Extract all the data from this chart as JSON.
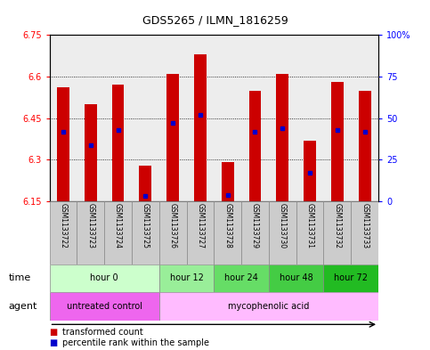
{
  "title": "GDS5265 / ILMN_1816259",
  "samples": [
    "GSM1133722",
    "GSM1133723",
    "GSM1133724",
    "GSM1133725",
    "GSM1133726",
    "GSM1133727",
    "GSM1133728",
    "GSM1133729",
    "GSM1133730",
    "GSM1133731",
    "GSM1133732",
    "GSM1133733"
  ],
  "bar_bottom": 6.15,
  "transformed_count": [
    6.56,
    6.5,
    6.57,
    6.28,
    6.61,
    6.68,
    6.29,
    6.55,
    6.61,
    6.37,
    6.58,
    6.55
  ],
  "percentile_rank_pct": [
    42,
    34,
    43,
    3,
    47,
    52,
    4,
    42,
    44,
    17,
    43,
    42
  ],
  "ylim_left": [
    6.15,
    6.75
  ],
  "ylim_right": [
    0,
    100
  ],
  "yticks_left": [
    6.15,
    6.3,
    6.45,
    6.6,
    6.75
  ],
  "yticks_right": [
    0,
    25,
    50,
    75,
    100
  ],
  "ytick_labels_right": [
    "0",
    "25",
    "50",
    "75",
    "100%"
  ],
  "bar_color": "#cc0000",
  "percentile_color": "#0000cc",
  "background_color": "#ffffff",
  "grid_color": "#000000",
  "time_groups": [
    {
      "label": "hour 0",
      "start": 0,
      "end": 4,
      "color": "#ccffcc"
    },
    {
      "label": "hour 12",
      "start": 4,
      "end": 6,
      "color": "#99ee99"
    },
    {
      "label": "hour 24",
      "start": 6,
      "end": 8,
      "color": "#66dd66"
    },
    {
      "label": "hour 48",
      "start": 8,
      "end": 10,
      "color": "#44cc44"
    },
    {
      "label": "hour 72",
      "start": 10,
      "end": 12,
      "color": "#22bb22"
    }
  ],
  "agent_groups": [
    {
      "label": "untreated control",
      "start": 0,
      "end": 4,
      "color": "#ee66ee"
    },
    {
      "label": "mycophenolic acid",
      "start": 4,
      "end": 12,
      "color": "#ffbbff"
    }
  ],
  "bar_width": 0.45,
  "sample_bg_color": "#cccccc"
}
